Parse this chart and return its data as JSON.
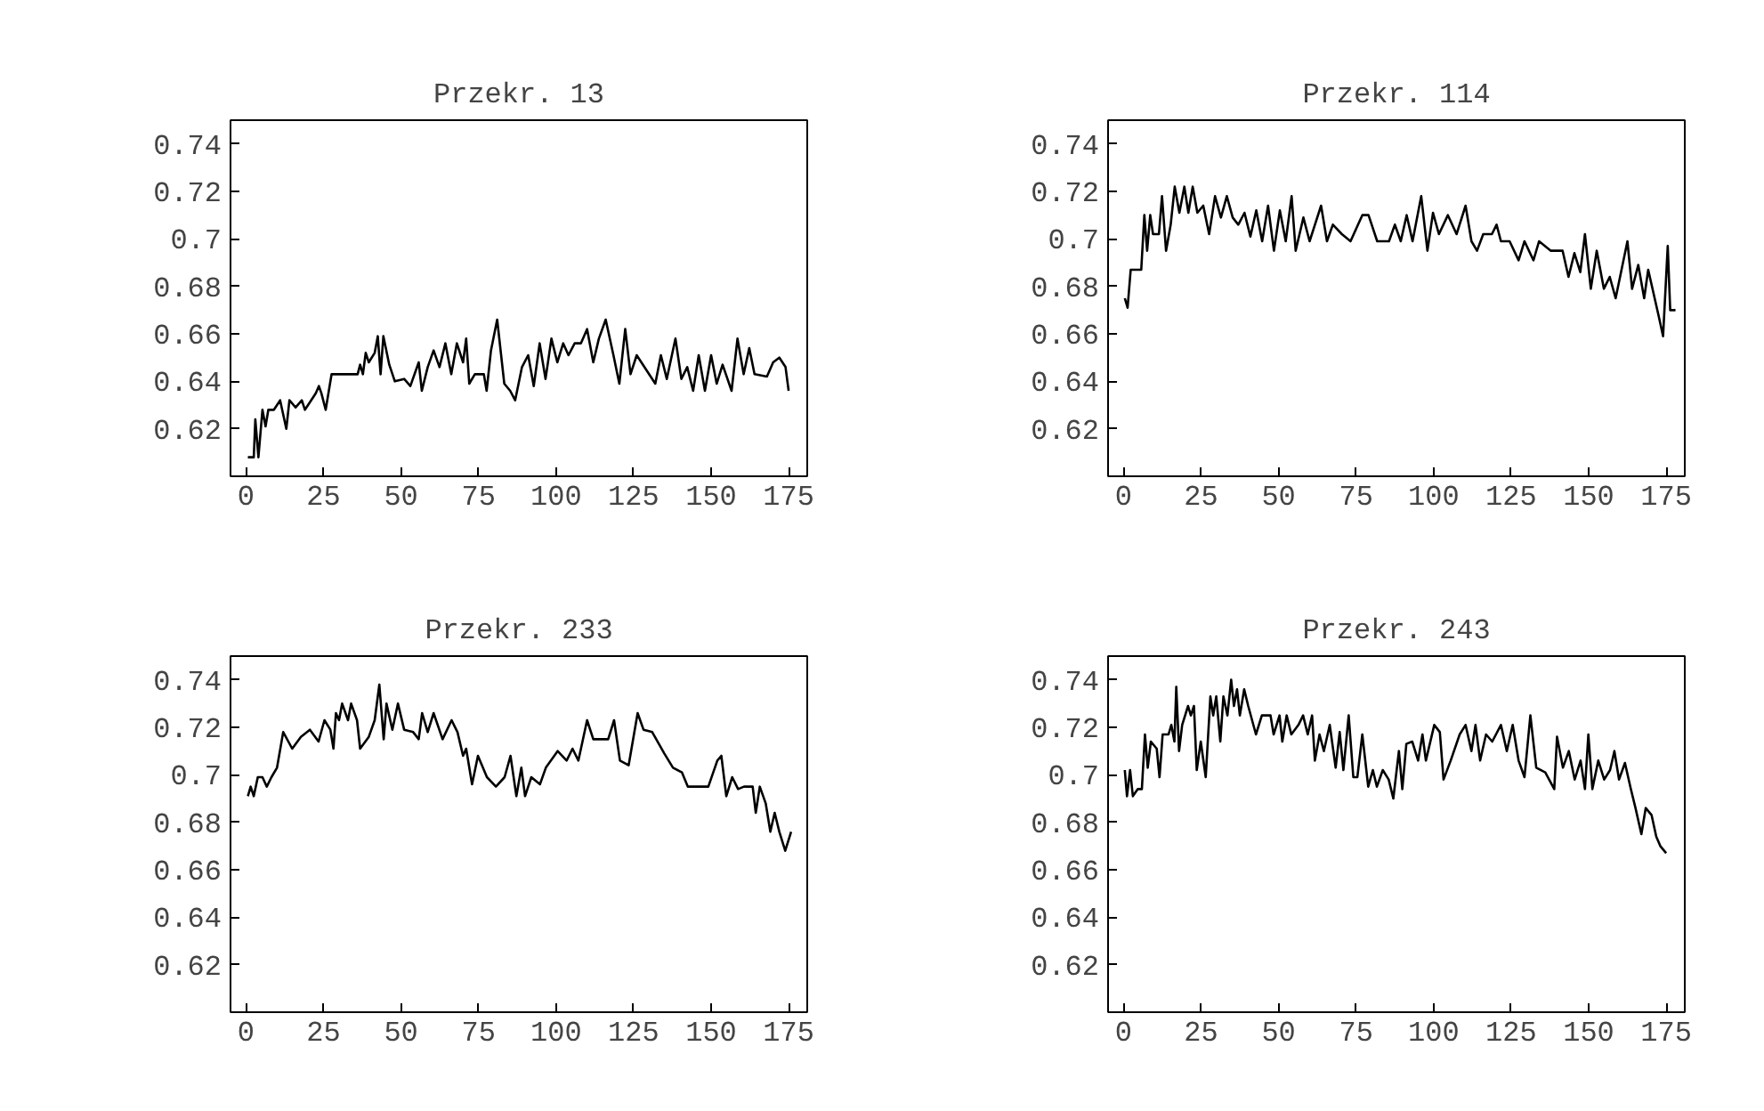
{
  "chart_data": [
    {
      "type": "line",
      "title": "Przekr. 13",
      "xlim": [
        -5,
        181
      ],
      "ylim": [
        0.6,
        0.75
      ],
      "xticks": [
        0,
        25,
        50,
        75,
        100,
        125,
        150,
        175
      ],
      "yticks": [
        0.62,
        0.64,
        0.66,
        0.68,
        0.7,
        0.72,
        0.74
      ],
      "grid": false,
      "series": [
        {
          "color": "#000000",
          "x": [
            0.6,
            2.5,
            3,
            4,
            5.3,
            6.3,
            7.2,
            9,
            11,
            13,
            14,
            16,
            18,
            19,
            21,
            22.5,
            23.5,
            24.3,
            25.7,
            27.6,
            36,
            36.8,
            37.7,
            38.6,
            39.6,
            41.5,
            42.5,
            43.4,
            44.3,
            46.2,
            48,
            51,
            53,
            55.7,
            56.7,
            58.6,
            60.5,
            62.4,
            64.3,
            66.2,
            68,
            70,
            71,
            72,
            73.8,
            76.7,
            77.6,
            79,
            81,
            83.3,
            85.2,
            86.8,
            89,
            91,
            92.8,
            94.7,
            96.6,
            98.5,
            100.4,
            102.3,
            104,
            106,
            108,
            110,
            112,
            113.8,
            116,
            118.5,
            120.4,
            122.3,
            124,
            126,
            129,
            132,
            133.8,
            135.7,
            138.5,
            140.4,
            142.3,
            144.2,
            146,
            148,
            150,
            151.8,
            153.7,
            156.6,
            158.5,
            160.5,
            162.3,
            164,
            168,
            170,
            172,
            174,
            175
          ],
          "values": [
            0.608,
            0.608,
            0.624,
            0.608,
            0.628,
            0.621,
            0.628,
            0.628,
            0.632,
            0.62,
            0.632,
            0.629,
            0.632,
            0.628,
            0.632,
            0.635,
            0.638,
            0.635,
            0.628,
            0.643,
            0.643,
            0.647,
            0.643,
            0.652,
            0.648,
            0.652,
            0.659,
            0.643,
            0.659,
            0.647,
            0.64,
            0.641,
            0.638,
            0.648,
            0.636,
            0.646,
            0.653,
            0.646,
            0.656,
            0.643,
            0.656,
            0.648,
            0.658,
            0.639,
            0.643,
            0.643,
            0.636,
            0.653,
            0.666,
            0.639,
            0.636,
            0.632,
            0.646,
            0.651,
            0.638,
            0.656,
            0.641,
            0.658,
            0.648,
            0.656,
            0.651,
            0.656,
            0.656,
            0.662,
            0.648,
            0.658,
            0.666,
            0.651,
            0.639,
            0.662,
            0.643,
            0.651,
            0.645,
            0.639,
            0.651,
            0.641,
            0.658,
            0.641,
            0.646,
            0.636,
            0.651,
            0.636,
            0.651,
            0.639,
            0.647,
            0.636,
            0.658,
            0.643,
            0.654,
            0.643,
            0.642,
            0.648,
            0.65,
            0.646,
            0.636
          ]
        }
      ]
    },
    {
      "type": "line",
      "title": "Przekr. 114",
      "xlim": [
        -5,
        181
      ],
      "ylim": [
        0.6,
        0.75
      ],
      "xticks": [
        0,
        25,
        50,
        75,
        100,
        125,
        150,
        175
      ],
      "yticks": [
        0.62,
        0.64,
        0.66,
        0.68,
        0.7,
        0.72,
        0.74
      ],
      "grid": false,
      "series": [
        {
          "color": "#000000",
          "x": [
            0.4,
            1.3,
            2.3,
            5.7,
            6.7,
            7.6,
            8.6,
            9.5,
            11.4,
            12.4,
            13.7,
            15.2,
            16.5,
            18,
            19.6,
            20.9,
            22.3,
            23.8,
            25.7,
            27.6,
            29.5,
            31.4,
            33.3,
            35.2,
            37,
            39,
            40.9,
            42.8,
            44.7,
            46.6,
            48.5,
            50.4,
            52.3,
            54.2,
            55.5,
            58,
            60,
            63.7,
            65.6,
            67.5,
            70.4,
            73.2,
            77,
            79,
            81.8,
            85.6,
            87.5,
            89.4,
            91.3,
            93.2,
            96,
            98,
            99.8,
            101.7,
            104.6,
            107.4,
            110.3,
            112.2,
            114,
            116,
            118.8,
            120.3,
            121.7,
            124.5,
            127.4,
            129.3,
            132.2,
            134,
            137.8,
            141.6,
            143.5,
            145.4,
            147.3,
            148.8,
            150.7,
            152.6,
            154.9,
            156.8,
            158.7,
            160.6,
            162.5,
            164,
            166,
            167.9,
            169.2,
            172.5,
            174,
            175.5,
            176.3,
            178
          ],
          "values": [
            0.675,
            0.671,
            0.687,
            0.687,
            0.71,
            0.695,
            0.71,
            0.702,
            0.702,
            0.718,
            0.695,
            0.706,
            0.722,
            0.711,
            0.722,
            0.711,
            0.722,
            0.711,
            0.714,
            0.702,
            0.718,
            0.709,
            0.718,
            0.709,
            0.706,
            0.711,
            0.701,
            0.712,
            0.699,
            0.714,
            0.695,
            0.712,
            0.699,
            0.718,
            0.695,
            0.709,
            0.699,
            0.714,
            0.699,
            0.706,
            0.702,
            0.699,
            0.71,
            0.71,
            0.699,
            0.699,
            0.706,
            0.699,
            0.71,
            0.699,
            0.718,
            0.695,
            0.711,
            0.702,
            0.71,
            0.702,
            0.714,
            0.699,
            0.695,
            0.702,
            0.702,
            0.706,
            0.699,
            0.699,
            0.691,
            0.699,
            0.691,
            0.699,
            0.695,
            0.695,
            0.684,
            0.694,
            0.686,
            0.702,
            0.679,
            0.695,
            0.679,
            0.684,
            0.675,
            0.687,
            0.699,
            0.679,
            0.689,
            0.675,
            0.687,
            0.668,
            0.659,
            0.697,
            0.67,
            0.67
          ]
        }
      ]
    },
    {
      "type": "line",
      "title": "Przekr. 233",
      "xlim": [
        -5,
        181
      ],
      "ylim": [
        0.6,
        0.75
      ],
      "xticks": [
        0,
        25,
        50,
        75,
        100,
        125,
        150,
        175
      ],
      "yticks": [
        0.62,
        0.64,
        0.66,
        0.68,
        0.7,
        0.72,
        0.74
      ],
      "grid": false,
      "series": [
        {
          "color": "#000000",
          "x": [
            0.6,
            1.5,
            2.5,
            3.8,
            5.3,
            6.7,
            8.2,
            10,
            12,
            14.9,
            17.7,
            20.6,
            23.4,
            25.3,
            27.2,
            28.2,
            29,
            30,
            31,
            32.9,
            33.9,
            35.8,
            36.8,
            39.6,
            41.5,
            43,
            44.4,
            45.3,
            47.2,
            49,
            51,
            53.9,
            55.7,
            56.8,
            58.6,
            60.5,
            63.4,
            66.3,
            68.2,
            70,
            71,
            72.9,
            74.8,
            77.7,
            80.6,
            83.4,
            85.3,
            87.2,
            88.8,
            90,
            92,
            94.8,
            96.7,
            100.5,
            103.4,
            105.3,
            107.2,
            110,
            112,
            116.8,
            118.7,
            120.6,
            123.4,
            126.3,
            128.2,
            131,
            134.9,
            137.7,
            140.6,
            142.5,
            149.1,
            152,
            153.3,
            154.9,
            156.8,
            158.7,
            160.6,
            163.4,
            164.4,
            165.7,
            167.6,
            169.1,
            170.5,
            172,
            173.9,
            175.8
          ],
          "values": [
            0.691,
            0.695,
            0.691,
            0.699,
            0.699,
            0.695,
            0.699,
            0.703,
            0.718,
            0.711,
            0.716,
            0.719,
            0.714,
            0.723,
            0.719,
            0.711,
            0.726,
            0.723,
            0.73,
            0.723,
            0.73,
            0.723,
            0.711,
            0.716,
            0.723,
            0.738,
            0.715,
            0.73,
            0.719,
            0.73,
            0.719,
            0.718,
            0.715,
            0.726,
            0.718,
            0.726,
            0.715,
            0.723,
            0.718,
            0.708,
            0.711,
            0.696,
            0.708,
            0.699,
            0.695,
            0.699,
            0.708,
            0.691,
            0.703,
            0.691,
            0.699,
            0.696,
            0.703,
            0.71,
            0.706,
            0.711,
            0.706,
            0.723,
            0.715,
            0.715,
            0.723,
            0.706,
            0.704,
            0.726,
            0.719,
            0.718,
            0.709,
            0.703,
            0.701,
            0.695,
            0.695,
            0.706,
            0.708,
            0.691,
            0.699,
            0.694,
            0.695,
            0.695,
            0.684,
            0.695,
            0.688,
            0.676,
            0.684,
            0.676,
            0.668,
            0.676
          ]
        }
      ]
    },
    {
      "type": "line",
      "title": "Przekr. 243",
      "xlim": [
        -5,
        181
      ],
      "ylim": [
        0.6,
        0.75
      ],
      "xticks": [
        0,
        25,
        50,
        75,
        100,
        125,
        150,
        175
      ],
      "yticks": [
        0.62,
        0.64,
        0.66,
        0.68,
        0.7,
        0.72,
        0.74
      ],
      "grid": false,
      "series": [
        {
          "color": "#000000",
          "x": [
            0.4,
            1.1,
            2.1,
            3,
            4.6,
            5.9,
            6.9,
            7.8,
            8.8,
            10.7,
            11.6,
            12.6,
            14.5,
            15.4,
            16.4,
            17,
            17.9,
            18.9,
            20.8,
            21.7,
            22.7,
            23.6,
            24.9,
            26.5,
            28,
            28.9,
            29.9,
            31.2,
            32.2,
            33.5,
            34.7,
            35.6,
            36.6,
            37.5,
            38.9,
            40.2,
            42.7,
            44.6,
            47.4,
            48.4,
            50.3,
            51.2,
            52.6,
            54.1,
            56.4,
            57.9,
            59.4,
            60.8,
            61.7,
            63.2,
            64.6,
            66.5,
            68.4,
            69.7,
            70.9,
            72.6,
            74.1,
            75.4,
            77,
            78.9,
            80.4,
            81.7,
            83.6,
            85.5,
            87,
            88.8,
            89.9,
            91.2,
            93.1,
            95,
            96.4,
            97.5,
            100.2,
            102,
            103.2,
            105.5,
            108.4,
            110.3,
            112.2,
            113.5,
            115,
            116.9,
            118.9,
            121.7,
            123.6,
            125.5,
            127.4,
            129.3,
            131.2,
            133.1,
            136,
            138.9,
            139.8,
            141.7,
            143.6,
            145.5,
            147.4,
            148.8,
            149.9,
            151.2,
            153.1,
            155,
            156.9,
            158.3,
            159.8,
            161.7,
            163.6,
            165.1,
            167,
            168.4,
            170.3,
            171.8,
            173.1,
            175
          ],
          "values": [
            0.702,
            0.691,
            0.702,
            0.691,
            0.694,
            0.694,
            0.717,
            0.703,
            0.714,
            0.711,
            0.699,
            0.717,
            0.717,
            0.721,
            0.714,
            0.737,
            0.71,
            0.721,
            0.729,
            0.725,
            0.729,
            0.702,
            0.714,
            0.699,
            0.733,
            0.725,
            0.733,
            0.714,
            0.733,
            0.725,
            0.74,
            0.729,
            0.736,
            0.725,
            0.736,
            0.729,
            0.717,
            0.725,
            0.725,
            0.717,
            0.725,
            0.714,
            0.725,
            0.717,
            0.721,
            0.725,
            0.717,
            0.725,
            0.706,
            0.717,
            0.71,
            0.721,
            0.703,
            0.718,
            0.702,
            0.725,
            0.699,
            0.699,
            0.717,
            0.695,
            0.702,
            0.695,
            0.702,
            0.698,
            0.69,
            0.71,
            0.694,
            0.713,
            0.714,
            0.706,
            0.717,
            0.706,
            0.721,
            0.718,
            0.698,
            0.706,
            0.717,
            0.721,
            0.71,
            0.721,
            0.706,
            0.717,
            0.714,
            0.721,
            0.71,
            0.721,
            0.706,
            0.699,
            0.725,
            0.703,
            0.701,
            0.694,
            0.716,
            0.703,
            0.71,
            0.698,
            0.706,
            0.694,
            0.717,
            0.694,
            0.706,
            0.698,
            0.702,
            0.71,
            0.698,
            0.705,
            0.694,
            0.686,
            0.675,
            0.686,
            0.683,
            0.674,
            0.67,
            0.667
          ]
        }
      ]
    }
  ]
}
